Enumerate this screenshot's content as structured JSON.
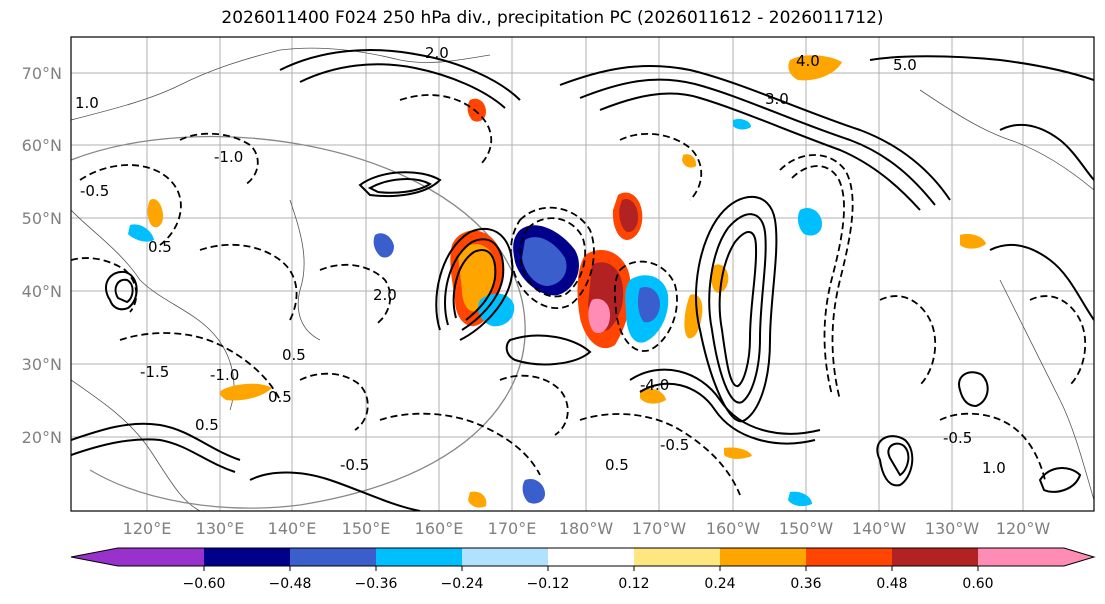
{
  "title": "2026011400 F024 250 hPa div., precipitation PC (2026011612 - 2026011712)",
  "map": {
    "lat_labels": [
      "70°N",
      "60°N",
      "50°N",
      "40°N",
      "30°N",
      "20°N"
    ],
    "lon_labels": [
      "120°E",
      "130°E",
      "140°E",
      "150°E",
      "160°E",
      "170°E",
      "180°W",
      "170°W",
      "160°W",
      "150°W",
      "140°W",
      "130°W",
      "120°W"
    ],
    "contour_labels": [
      "5.0",
      "4.0",
      "3.0",
      "2.0",
      "1.0",
      "0.5",
      "-0.5",
      "-1.0",
      "-1.5",
      "-4.0",
      "0.5",
      "-0.5",
      "1.0",
      "-1.0",
      "0.5",
      "-0.5",
      "2.0",
      "0.5",
      "-0.5",
      "0.5"
    ]
  },
  "colorbar": {
    "ticks": [
      "−0.60",
      "−0.48",
      "−0.36",
      "−0.24",
      "−0.12",
      "0.12",
      "0.24",
      "0.36",
      "0.48",
      "0.60"
    ],
    "colors": [
      "#9932cc",
      "#00008b",
      "#3a5fcd",
      "#00bfff",
      "#b0e2ff",
      "#ffffff",
      "#ffe680",
      "#ffa500",
      "#ff4500",
      "#b22222",
      "#ff8cb4",
      "#ff8cb4"
    ]
  }
}
